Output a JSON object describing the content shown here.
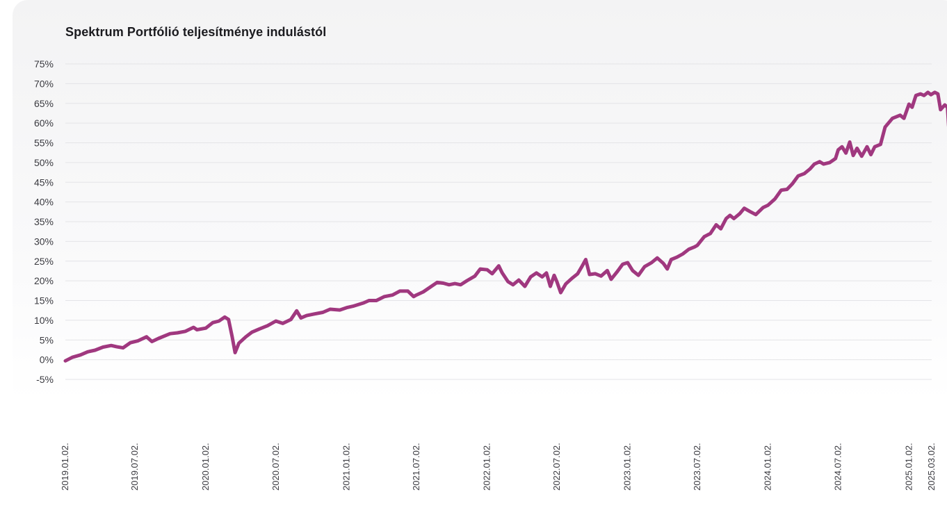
{
  "chart_data": {
    "type": "line",
    "title": "Spektrum Portfólió teljesítménye indulástól",
    "xlabel": "",
    "ylabel": "",
    "y_ticks": [
      "-5%",
      "0%",
      "5%",
      "10%",
      "15%",
      "20%",
      "25%",
      "30%",
      "35%",
      "40%",
      "45%",
      "50%",
      "55%",
      "60%",
      "65%",
      "70%",
      "75%"
    ],
    "ylim": [
      -5,
      75
    ],
    "y_unit": "%",
    "x_ticks": [
      "2019.01.02.",
      "2019.07.02.",
      "2020.01.02.",
      "2020.07.02.",
      "2021.01.02.",
      "2021.07.02.",
      "2022.01.02.",
      "2022.07.02.",
      "2023.01.02.",
      "2023.07.02.",
      "2024.01.02.",
      "2024.07.02.",
      "2025.01.02.",
      "2025.03.02."
    ],
    "xlim": [
      "2019-01-02",
      "2025-03-02"
    ],
    "grid": true,
    "legend": "none",
    "series": [
      {
        "color": "#a0387f",
        "points": [
          [
            "2019-01-02",
            -0.3
          ],
          [
            "2019-01-20",
            0.6
          ],
          [
            "2019-02-10",
            1.2
          ],
          [
            "2019-03-01",
            2.0
          ],
          [
            "2019-03-20",
            2.4
          ],
          [
            "2019-04-10",
            3.2
          ],
          [
            "2019-05-01",
            3.6
          ],
          [
            "2019-05-15",
            3.3
          ],
          [
            "2019-06-01",
            3.0
          ],
          [
            "2019-06-20",
            4.3
          ],
          [
            "2019-07-10",
            4.8
          ],
          [
            "2019-08-01",
            5.8
          ],
          [
            "2019-08-15",
            4.6
          ],
          [
            "2019-09-01",
            5.4
          ],
          [
            "2019-10-01",
            6.6
          ],
          [
            "2019-10-20",
            6.8
          ],
          [
            "2019-11-10",
            7.2
          ],
          [
            "2019-12-01",
            8.2
          ],
          [
            "2019-12-10",
            7.6
          ],
          [
            "2020-01-02",
            8.0
          ],
          [
            "2020-01-20",
            9.4
          ],
          [
            "2020-02-05",
            9.8
          ],
          [
            "2020-02-20",
            10.8
          ],
          [
            "2020-03-01",
            10.2
          ],
          [
            "2020-03-10",
            6.0
          ],
          [
            "2020-03-18",
            1.8
          ],
          [
            "2020-03-28",
            4.2
          ],
          [
            "2020-04-15",
            5.8
          ],
          [
            "2020-05-01",
            7.0
          ],
          [
            "2020-05-20",
            7.8
          ],
          [
            "2020-06-10",
            8.6
          ],
          [
            "2020-07-02",
            9.8
          ],
          [
            "2020-07-20",
            9.2
          ],
          [
            "2020-08-10",
            10.2
          ],
          [
            "2020-08-25",
            12.4
          ],
          [
            "2020-09-05",
            10.6
          ],
          [
            "2020-09-20",
            11.2
          ],
          [
            "2020-10-10",
            11.6
          ],
          [
            "2020-11-01",
            12.0
          ],
          [
            "2020-11-20",
            12.8
          ],
          [
            "2020-12-15",
            12.6
          ],
          [
            "2021-01-02",
            13.2
          ],
          [
            "2021-01-20",
            13.6
          ],
          [
            "2021-02-15",
            14.4
          ],
          [
            "2021-03-01",
            15.0
          ],
          [
            "2021-03-20",
            15.0
          ],
          [
            "2021-04-10",
            16.0
          ],
          [
            "2021-05-01",
            16.4
          ],
          [
            "2021-05-20",
            17.4
          ],
          [
            "2021-06-10",
            17.4
          ],
          [
            "2021-06-25",
            16.0
          ],
          [
            "2021-07-02",
            16.4
          ],
          [
            "2021-07-20",
            17.2
          ],
          [
            "2021-08-10",
            18.6
          ],
          [
            "2021-08-25",
            19.6
          ],
          [
            "2021-09-10",
            19.4
          ],
          [
            "2021-09-25",
            19.0
          ],
          [
            "2021-10-10",
            19.3
          ],
          [
            "2021-10-25",
            19.0
          ],
          [
            "2021-11-10",
            20.0
          ],
          [
            "2021-12-01",
            21.2
          ],
          [
            "2021-12-15",
            23.0
          ],
          [
            "2022-01-02",
            22.8
          ],
          [
            "2022-01-15",
            21.8
          ],
          [
            "2022-02-01",
            23.8
          ],
          [
            "2022-02-10",
            22.0
          ],
          [
            "2022-02-25",
            19.8
          ],
          [
            "2022-03-10",
            19.0
          ],
          [
            "2022-03-25",
            20.2
          ],
          [
            "2022-04-10",
            18.6
          ],
          [
            "2022-04-25",
            21.0
          ],
          [
            "2022-05-10",
            22.0
          ],
          [
            "2022-05-25",
            21.0
          ],
          [
            "2022-06-05",
            22.0
          ],
          [
            "2022-06-15",
            18.6
          ],
          [
            "2022-06-25",
            21.4
          ],
          [
            "2022-07-02",
            19.8
          ],
          [
            "2022-07-12",
            17.0
          ],
          [
            "2022-07-25",
            19.2
          ],
          [
            "2022-08-10",
            20.6
          ],
          [
            "2022-08-25",
            21.8
          ],
          [
            "2022-09-05",
            23.6
          ],
          [
            "2022-09-15",
            25.4
          ],
          [
            "2022-09-25",
            21.6
          ],
          [
            "2022-10-10",
            21.8
          ],
          [
            "2022-10-25",
            21.2
          ],
          [
            "2022-11-10",
            22.6
          ],
          [
            "2022-11-20",
            20.4
          ],
          [
            "2022-12-05",
            22.2
          ],
          [
            "2022-12-20",
            24.2
          ],
          [
            "2023-01-02",
            24.6
          ],
          [
            "2023-01-15",
            22.6
          ],
          [
            "2023-01-30",
            21.4
          ],
          [
            "2023-02-15",
            23.6
          ],
          [
            "2023-03-05",
            24.6
          ],
          [
            "2023-03-20",
            25.8
          ],
          [
            "2023-04-05",
            24.4
          ],
          [
            "2023-04-15",
            23.0
          ],
          [
            "2023-04-25",
            25.4
          ],
          [
            "2023-05-10",
            26.0
          ],
          [
            "2023-05-25",
            26.8
          ],
          [
            "2023-06-10",
            28.0
          ],
          [
            "2023-06-25",
            28.6
          ],
          [
            "2023-07-02",
            29.0
          ],
          [
            "2023-07-20",
            31.2
          ],
          [
            "2023-08-05",
            32.0
          ],
          [
            "2023-08-20",
            34.2
          ],
          [
            "2023-09-01",
            33.2
          ],
          [
            "2023-09-15",
            35.8
          ],
          [
            "2023-09-25",
            36.6
          ],
          [
            "2023-10-05",
            35.8
          ],
          [
            "2023-10-20",
            37.0
          ],
          [
            "2023-11-01",
            38.4
          ],
          [
            "2023-11-15",
            37.6
          ],
          [
            "2023-12-01",
            36.8
          ],
          [
            "2023-12-20",
            38.6
          ],
          [
            "2024-01-02",
            39.2
          ],
          [
            "2024-01-20",
            40.8
          ],
          [
            "2024-02-05",
            43.0
          ],
          [
            "2024-02-20",
            43.2
          ],
          [
            "2024-03-05",
            44.6
          ],
          [
            "2024-03-20",
            46.6
          ],
          [
            "2024-04-05",
            47.2
          ],
          [
            "2024-04-20",
            48.4
          ],
          [
            "2024-05-01",
            49.6
          ],
          [
            "2024-05-15",
            50.2
          ],
          [
            "2024-05-25",
            49.6
          ],
          [
            "2024-06-10",
            50.0
          ],
          [
            "2024-06-25",
            51.0
          ],
          [
            "2024-07-02",
            53.2
          ],
          [
            "2024-07-12",
            54.0
          ],
          [
            "2024-07-22",
            52.4
          ],
          [
            "2024-08-01",
            55.2
          ],
          [
            "2024-08-10",
            51.8
          ],
          [
            "2024-08-20",
            53.6
          ],
          [
            "2024-09-01",
            51.6
          ],
          [
            "2024-09-15",
            54.0
          ],
          [
            "2024-09-25",
            52.0
          ],
          [
            "2024-10-05",
            54.0
          ],
          [
            "2024-10-20",
            54.6
          ],
          [
            "2024-11-01",
            59.0
          ],
          [
            "2024-11-20",
            61.2
          ],
          [
            "2024-12-10",
            62.0
          ],
          [
            "2024-12-20",
            61.2
          ],
          [
            "2025-01-02",
            64.8
          ],
          [
            "2025-01-10",
            64.0
          ],
          [
            "2025-01-20",
            67.0
          ],
          [
            "2025-02-01",
            67.4
          ],
          [
            "2025-02-10",
            67.0
          ],
          [
            "2025-02-20",
            67.8
          ],
          [
            "2025-02-28",
            67.2
          ],
          [
            "2025-03-10",
            67.8
          ],
          [
            "2025-03-18",
            67.4
          ],
          [
            "2025-03-25",
            63.4
          ],
          [
            "2025-04-05",
            64.6
          ],
          [
            "2025-04-12",
            64.0
          ],
          [
            "2025-04-15",
            59.2
          ]
        ]
      }
    ]
  }
}
